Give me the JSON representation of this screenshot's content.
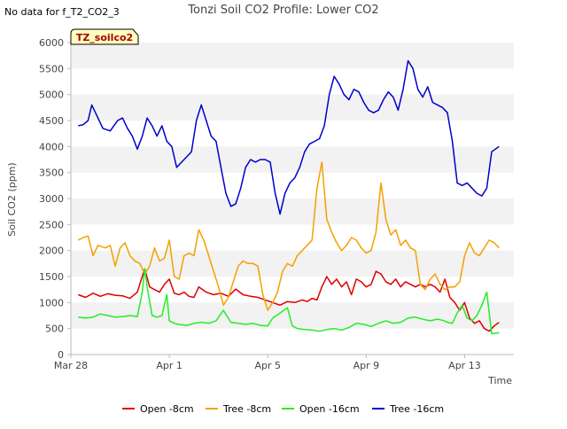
{
  "corner_note": "No data for f_T2_CO2_3",
  "badge": "TZ_soilco2",
  "chart_data": {
    "type": "line",
    "title": "Tonzi Soil CO2 Profile: Lower CO2",
    "xlabel": "Time",
    "ylabel": "Soil CO2 (ppm)",
    "ylim": [
      0,
      6000
    ],
    "yticks": [
      0,
      500,
      1000,
      1500,
      2000,
      2500,
      3000,
      3500,
      4000,
      4500,
      5000,
      5500,
      6000
    ],
    "xlim": [
      0,
      18
    ],
    "xticks": [
      {
        "x": 0,
        "label": "Mar 28"
      },
      {
        "x": 4,
        "label": "Apr 1"
      },
      {
        "x": 8,
        "label": "Apr 5"
      },
      {
        "x": 12,
        "label": "Apr 9"
      },
      {
        "x": 16,
        "label": "Apr 13"
      }
    ],
    "grid": "horizontal bands",
    "legend_position": "bottom",
    "series": [
      {
        "name": "Open -8cm",
        "color": "#dd0000",
        "x": [
          0.3,
          0.6,
          0.9,
          1.2,
          1.5,
          1.8,
          2.1,
          2.4,
          2.7,
          3.0,
          3.2,
          3.4,
          3.6,
          3.8,
          4.0,
          4.2,
          4.4,
          4.6,
          4.8,
          5.0,
          5.2,
          5.5,
          5.8,
          6.1,
          6.4,
          6.7,
          7.0,
          7.3,
          7.6,
          7.9,
          8.2,
          8.5,
          8.8,
          9.1,
          9.4,
          9.6,
          9.8,
          10.0,
          10.2,
          10.4,
          10.6,
          10.8,
          11.0,
          11.2,
          11.4,
          11.6,
          11.8,
          12.0,
          12.2,
          12.4,
          12.6,
          12.8,
          13.0,
          13.2,
          13.4,
          13.6,
          13.8,
          14.0,
          14.2,
          14.4,
          14.6,
          14.8,
          15.0,
          15.2,
          15.4,
          15.6,
          15.8,
          16.0,
          16.2,
          16.4,
          16.6,
          16.8,
          17.0,
          17.2,
          17.4
        ],
        "y": [
          1150,
          1100,
          1180,
          1120,
          1170,
          1140,
          1130,
          1080,
          1200,
          1650,
          1300,
          1250,
          1200,
          1350,
          1450,
          1180,
          1150,
          1200,
          1120,
          1100,
          1300,
          1200,
          1150,
          1180,
          1120,
          1260,
          1150,
          1120,
          1100,
          1050,
          1000,
          950,
          1020,
          1000,
          1050,
          1020,
          1080,
          1050,
          1300,
          1500,
          1350,
          1450,
          1300,
          1400,
          1150,
          1450,
          1400,
          1300,
          1350,
          1600,
          1550,
          1400,
          1350,
          1450,
          1300,
          1400,
          1350,
          1300,
          1350,
          1300,
          1350,
          1300,
          1200,
          1450,
          1100,
          1000,
          850,
          1000,
          700,
          600,
          650,
          500,
          450,
          550,
          620
        ]
      },
      {
        "name": "Tree -8cm",
        "color": "#f4a000",
        "x": [
          0.3,
          0.5,
          0.7,
          0.9,
          1.1,
          1.4,
          1.6,
          1.8,
          2.0,
          2.2,
          2.4,
          2.6,
          2.8,
          3.0,
          3.2,
          3.4,
          3.6,
          3.8,
          4.0,
          4.2,
          4.4,
          4.6,
          4.8,
          5.0,
          5.2,
          5.4,
          5.6,
          5.8,
          6.0,
          6.2,
          6.4,
          6.6,
          6.8,
          7.0,
          7.2,
          7.4,
          7.6,
          7.8,
          8.0,
          8.2,
          8.4,
          8.6,
          8.8,
          9.0,
          9.2,
          9.4,
          9.6,
          9.8,
          10.0,
          10.2,
          10.4,
          10.6,
          10.8,
          11.0,
          11.2,
          11.4,
          11.6,
          11.8,
          12.0,
          12.2,
          12.4,
          12.6,
          12.8,
          13.0,
          13.2,
          13.4,
          13.6,
          13.8,
          14.0,
          14.2,
          14.4,
          14.6,
          14.8,
          15.0,
          15.2,
          15.4,
          15.6,
          15.8,
          16.0,
          16.2,
          16.4,
          16.6,
          16.8,
          17.0,
          17.2,
          17.4
        ],
        "y": [
          2200,
          2250,
          2280,
          1900,
          2100,
          2050,
          2100,
          1700,
          2050,
          2150,
          1900,
          1800,
          1750,
          1550,
          1700,
          2050,
          1800,
          1850,
          2200,
          1500,
          1450,
          1900,
          1950,
          1900,
          2400,
          2200,
          1900,
          1600,
          1300,
          950,
          1100,
          1400,
          1700,
          1800,
          1750,
          1750,
          1700,
          1150,
          850,
          1000,
          1200,
          1600,
          1750,
          1700,
          1900,
          2000,
          2100,
          2200,
          3200,
          3700,
          2600,
          2350,
          2150,
          2000,
          2100,
          2250,
          2200,
          2050,
          1950,
          2000,
          2350,
          3300,
          2600,
          2300,
          2400,
          2100,
          2200,
          2050,
          2000,
          1350,
          1250,
          1450,
          1550,
          1350,
          1250,
          1300,
          1300,
          1400,
          1900,
          2150,
          1950,
          1900,
          2050,
          2200,
          2150,
          2050
        ]
      },
      {
        "name": "Open -16cm",
        "color": "#22ee22",
        "x": [
          0.3,
          0.6,
          0.9,
          1.2,
          1.5,
          1.8,
          2.1,
          2.4,
          2.7,
          2.9,
          3.0,
          3.1,
          3.3,
          3.5,
          3.7,
          3.9,
          4.0,
          4.2,
          4.4,
          4.7,
          5.0,
          5.3,
          5.6,
          5.9,
          6.2,
          6.5,
          6.8,
          7.1,
          7.4,
          7.7,
          8.0,
          8.2,
          8.5,
          8.8,
          9.0,
          9.2,
          9.5,
          9.8,
          10.1,
          10.4,
          10.7,
          11.0,
          11.3,
          11.6,
          11.9,
          12.2,
          12.5,
          12.8,
          13.1,
          13.4,
          13.7,
          14.0,
          14.3,
          14.6,
          14.9,
          15.1,
          15.3,
          15.5,
          15.7,
          15.9,
          16.1,
          16.3,
          16.5,
          16.7,
          16.9,
          17.1,
          17.4
        ],
        "y": [
          720,
          700,
          720,
          780,
          750,
          720,
          730,
          750,
          730,
          1200,
          1650,
          1300,
          750,
          720,
          750,
          1150,
          650,
          600,
          580,
          560,
          600,
          620,
          600,
          650,
          850,
          620,
          600,
          580,
          600,
          560,
          550,
          700,
          800,
          900,
          550,
          500,
          480,
          470,
          450,
          480,
          500,
          470,
          520,
          600,
          580,
          540,
          600,
          650,
          600,
          620,
          700,
          720,
          680,
          650,
          680,
          660,
          620,
          600,
          800,
          950,
          700,
          650,
          750,
          950,
          1200,
          400,
          420
        ]
      },
      {
        "name": "Tree -16cm",
        "color": "#0000cc",
        "x": [
          0.3,
          0.5,
          0.7,
          0.85,
          1.0,
          1.3,
          1.6,
          1.9,
          2.1,
          2.3,
          2.5,
          2.7,
          2.9,
          3.1,
          3.3,
          3.5,
          3.7,
          3.9,
          4.1,
          4.3,
          4.5,
          4.7,
          4.9,
          5.1,
          5.3,
          5.5,
          5.7,
          5.9,
          6.1,
          6.3,
          6.5,
          6.7,
          6.9,
          7.1,
          7.3,
          7.5,
          7.7,
          7.9,
          8.1,
          8.3,
          8.5,
          8.7,
          8.9,
          9.1,
          9.3,
          9.5,
          9.7,
          9.9,
          10.1,
          10.3,
          10.5,
          10.7,
          10.9,
          11.1,
          11.3,
          11.5,
          11.7,
          11.9,
          12.1,
          12.3,
          12.5,
          12.7,
          12.9,
          13.1,
          13.3,
          13.5,
          13.7,
          13.9,
          14.1,
          14.3,
          14.5,
          14.7,
          14.9,
          15.1,
          15.3,
          15.5,
          15.7,
          15.9,
          16.1,
          16.3,
          16.5,
          16.7,
          16.9,
          17.1,
          17.4
        ],
        "y": [
          4400,
          4420,
          4500,
          4800,
          4650,
          4350,
          4300,
          4500,
          4550,
          4350,
          4200,
          3950,
          4200,
          4550,
          4400,
          4200,
          4400,
          4100,
          4000,
          3600,
          3700,
          3800,
          3900,
          4500,
          4800,
          4500,
          4200,
          4100,
          3600,
          3100,
          2850,
          2900,
          3200,
          3600,
          3750,
          3700,
          3750,
          3750,
          3700,
          3100,
          2700,
          3100,
          3300,
          3400,
          3600,
          3900,
          4050,
          4100,
          4150,
          4400,
          5000,
          5350,
          5200,
          5000,
          4900,
          5100,
          5050,
          4850,
          4700,
          4650,
          4700,
          4900,
          5050,
          4950,
          4700,
          5100,
          5650,
          5500,
          5100,
          4950,
          5150,
          4850,
          4800,
          4750,
          4650,
          4100,
          3300,
          3250,
          3300,
          3200,
          3100,
          3050,
          3200,
          3900,
          4000
        ]
      }
    ]
  }
}
